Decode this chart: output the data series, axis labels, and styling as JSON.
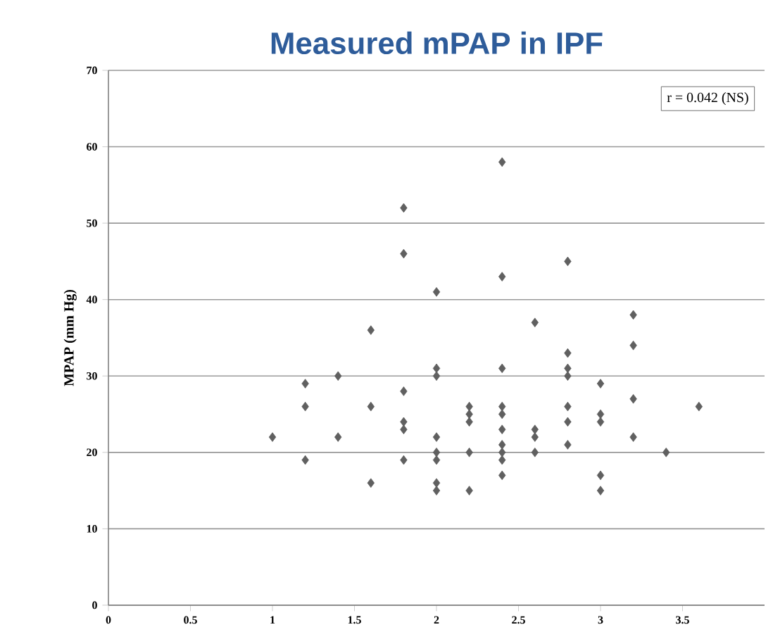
{
  "chart_data": {
    "type": "scatter",
    "title": "Measured mPAP in IPF",
    "ylabel": "MPAP (mm Hg)",
    "annotations": [
      "r =  0.042 (NS)"
    ],
    "series": [
      {
        "color": "#606060",
        "x": [
          1.0,
          1.2,
          1.2,
          1.2,
          1.4,
          1.4,
          1.6,
          1.6,
          1.6,
          1.8,
          1.8,
          1.8,
          1.8,
          1.8,
          1.8,
          2.0,
          2.0,
          2.0,
          2.0,
          2.0,
          2.0,
          2.0,
          2.0,
          2.2,
          2.2,
          2.2,
          2.2,
          2.2,
          2.4,
          2.4,
          2.4,
          2.4,
          2.4,
          2.4,
          2.4,
          2.4,
          2.4,
          2.4,
          2.6,
          2.6,
          2.6,
          2.6,
          2.8,
          2.8,
          2.8,
          2.8,
          2.8,
          2.8,
          2.8,
          3.0,
          3.0,
          3.0,
          3.0,
          3.0,
          3.2,
          3.2,
          3.2,
          3.2,
          3.4,
          3.6
        ],
        "values": [
          22,
          29,
          26,
          19,
          30,
          22,
          36,
          26,
          16,
          52,
          46,
          28,
          24,
          23,
          19,
          41,
          31,
          30,
          22,
          20,
          19,
          16,
          15,
          26,
          25,
          24,
          20,
          15,
          58,
          43,
          31,
          26,
          25,
          23,
          21,
          20,
          19,
          17,
          37,
          23,
          22,
          20,
          45,
          33,
          31,
          30,
          26,
          24,
          21,
          29,
          25,
          24,
          17,
          15,
          38,
          34,
          27,
          22,
          20,
          26
        ]
      }
    ],
    "xlim": [
      0,
      4
    ],
    "ylim": [
      0,
      70
    ],
    "xticks": [
      0,
      0.5,
      1,
      1.5,
      2,
      2.5,
      3,
      3.5
    ],
    "yticks": [
      0,
      10,
      20,
      30,
      40,
      50,
      60,
      70
    ],
    "grid": "y",
    "marker": "diamond"
  }
}
